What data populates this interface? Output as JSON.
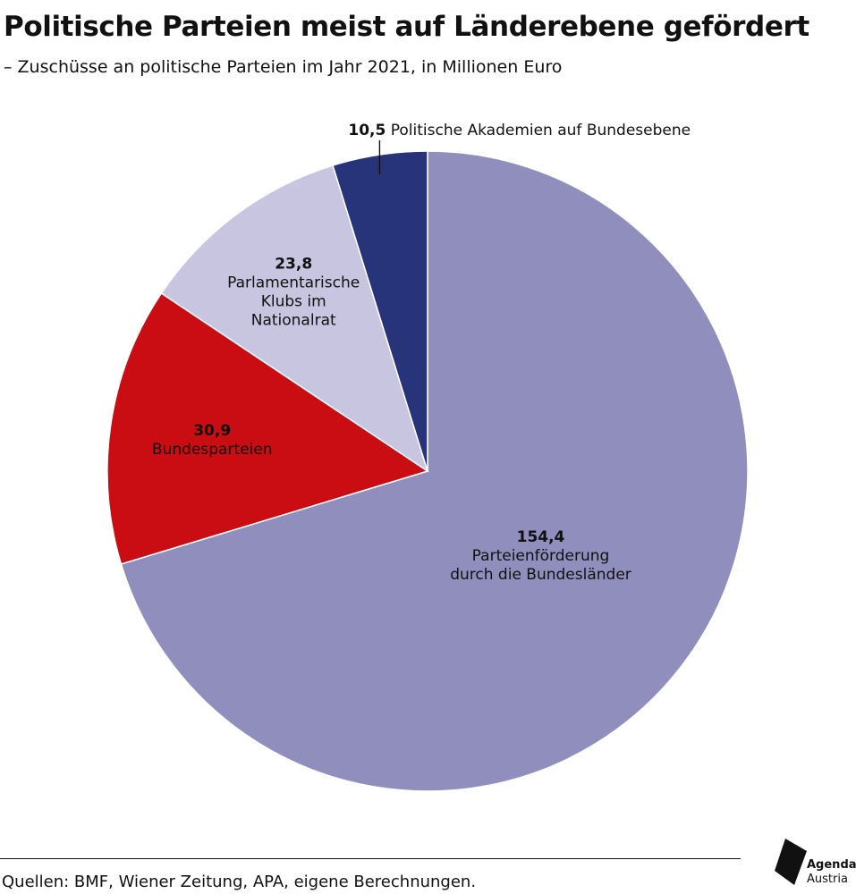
{
  "title": "Politische Parteien meist auf Länderebene gefördert",
  "subtitle": "– Zuschüsse an politische Parteien im Jahr 2021, in Millionen Euro",
  "source": "Quellen: BMF, Wiener Zeitung, APA, eigene Berechnungen.",
  "logo": {
    "line1": "Agenda",
    "line2": "Austria"
  },
  "chart_data": {
    "type": "pie",
    "slices": [
      {
        "value": 154.4,
        "value_label": "154,4",
        "label_lines": [
          "Parteienförderung",
          "durch die Bundesländer"
        ],
        "color": "#8f8ebd",
        "text_color": "#111111"
      },
      {
        "value": 30.9,
        "value_label": "30,9",
        "label_lines": [
          "Bundesparteien"
        ],
        "color": "#c90d12",
        "text_color": "#ffffff"
      },
      {
        "value": 23.8,
        "value_label": "23,8",
        "label_lines": [
          "Parlamentarische",
          "Klubs im",
          "Nationalrat"
        ],
        "color": "#c8c5e0",
        "text_color": "#111111"
      },
      {
        "value": 10.5,
        "value_label": "10,5",
        "label_lines": [
          "Politische Akademien auf Bundesebene"
        ],
        "color": "#27347a",
        "text_color": "#111111"
      }
    ],
    "start": "12 o'clock",
    "direction": "clockwise"
  }
}
